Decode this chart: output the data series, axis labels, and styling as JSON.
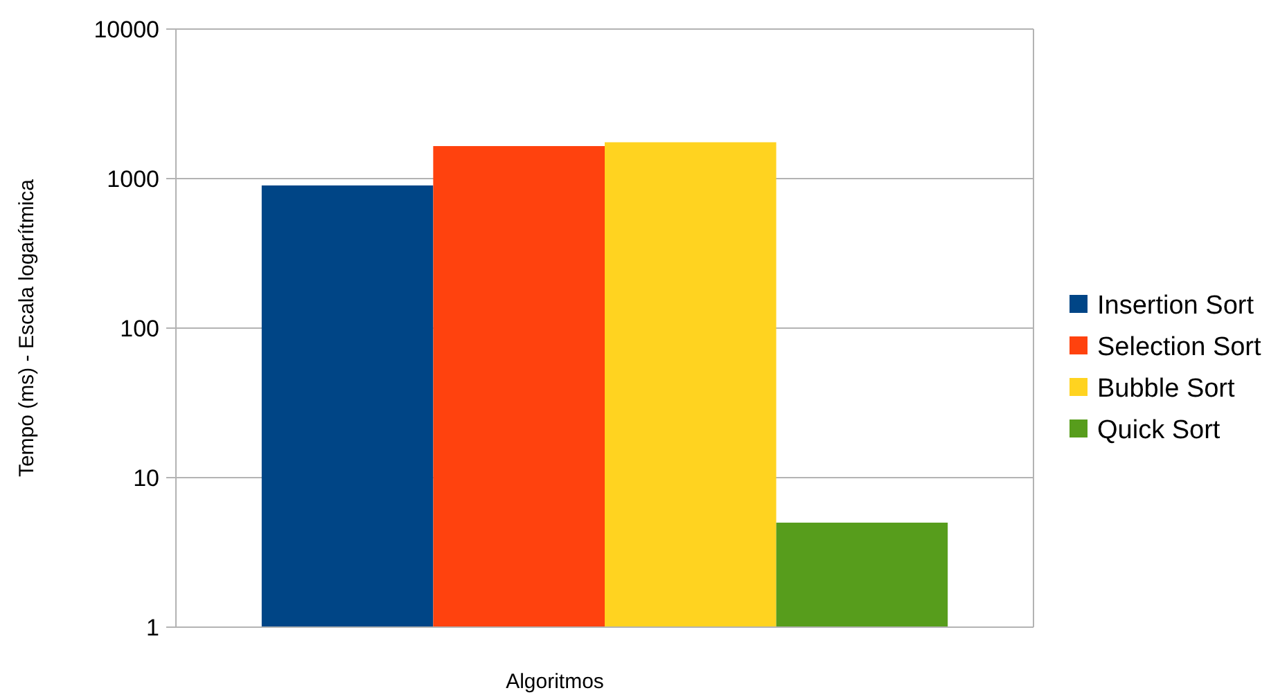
{
  "chart_data": {
    "type": "bar",
    "xlabel": "Algoritmos",
    "ylabel": "Tempo (ms) - Escala logarítmica",
    "categories": [
      null
    ],
    "series": [
      {
        "name": "Insertion Sort",
        "color": "#004586",
        "values": [
          900
        ]
      },
      {
        "name": "Selection Sort",
        "color": "#ff420e",
        "values": [
          1650
        ]
      },
      {
        "name": "Bubble Sort",
        "color": "#ffd320",
        "values": [
          1750
        ]
      },
      {
        "name": "Quick Sort",
        "color": "#579d1c",
        "values": [
          5
        ]
      }
    ],
    "log": true,
    "ylim": [
      1,
      10000
    ],
    "yticks": [
      1,
      10,
      100,
      1000,
      10000
    ],
    "grid": "y",
    "legend": "right"
  }
}
